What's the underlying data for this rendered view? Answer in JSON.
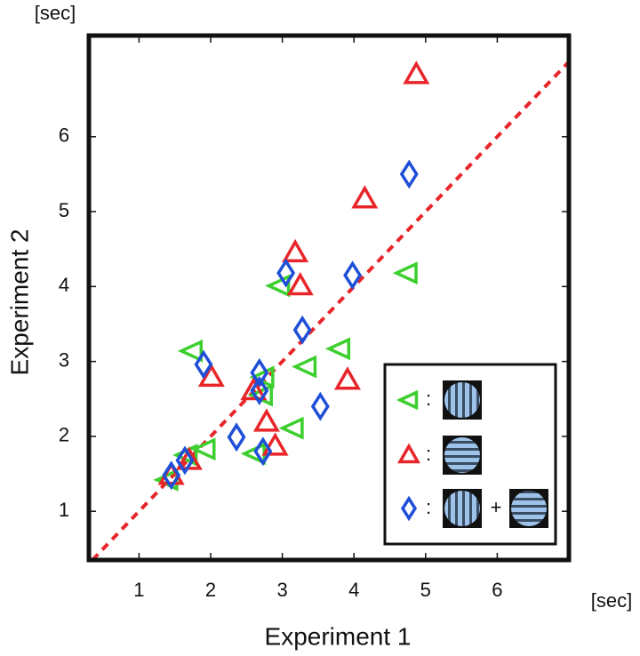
{
  "chart_data": {
    "type": "scatter",
    "x_unit": "[sec]",
    "y_unit": "[sec]",
    "x_label": "Experiment 1",
    "y_label": "Experiment 2",
    "xlim": [
      0.3,
      7.0
    ],
    "ylim": [
      0.35,
      7.35
    ],
    "xticks": [
      1,
      2,
      3,
      4,
      5,
      6
    ],
    "yticks": [
      1,
      2,
      3,
      4,
      5,
      6
    ],
    "diagonal": true,
    "diagonal_color": "#e8262a",
    "legend_position": "lower right",
    "legend_separator": ":",
    "legend_plus": "+",
    "series": [
      {
        "marker": "triangle-left",
        "color": "#3ccf2e",
        "x": [
          1.4,
          1.67,
          1.92,
          1.74,
          2.74,
          2.72,
          2.62,
          2.96,
          3.33,
          3.15,
          3.8,
          4.74
        ],
        "values": [
          1.42,
          1.75,
          1.83,
          3.14,
          2.79,
          2.55,
          1.77,
          4.01,
          2.93,
          2.11,
          3.17,
          4.18
        ]
      },
      {
        "marker": "triangle-up",
        "color": "#e8262a",
        "x": [
          1.45,
          1.7,
          2.01,
          2.6,
          2.78,
          2.9,
          3.18,
          3.25,
          3.91,
          4.15,
          4.87
        ],
        "values": [
          1.48,
          1.68,
          2.79,
          2.61,
          2.19,
          1.87,
          4.45,
          4.01,
          2.75,
          5.17,
          6.83
        ]
      },
      {
        "marker": "diamond",
        "color": "#1f4fd8",
        "x": [
          1.45,
          1.64,
          1.9,
          2.36,
          2.68,
          2.68,
          2.73,
          3.05,
          3.28,
          3.53,
          3.98,
          4.77
        ],
        "values": [
          1.48,
          1.68,
          2.96,
          1.99,
          2.85,
          2.61,
          1.8,
          4.18,
          3.42,
          2.4,
          4.15,
          5.5
        ]
      }
    ]
  }
}
